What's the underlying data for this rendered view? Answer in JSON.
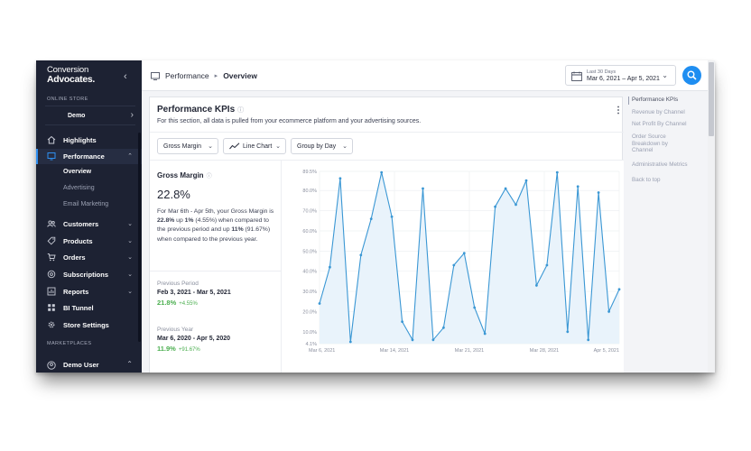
{
  "sidebar": {
    "logo_line1": "Conversion",
    "logo_line2": "Advocates.",
    "store_caption": "ONLINE STORE",
    "store_name": "Demo",
    "items": [
      {
        "label": "Highlights"
      },
      {
        "label": "Performance"
      },
      {
        "label": "Customers"
      },
      {
        "label": "Products"
      },
      {
        "label": "Orders"
      },
      {
        "label": "Subscriptions"
      },
      {
        "label": "Reports"
      },
      {
        "label": "BI Tunnel"
      },
      {
        "label": "Store Settings"
      }
    ],
    "performance_sub": [
      "Overview",
      "Advertising",
      "Email Marketing"
    ],
    "marketplaces_caption": "MARKETPLACES",
    "user_label": "Demo User"
  },
  "header": {
    "breadcrumb_section": "Performance",
    "breadcrumb_page": "Overview",
    "date_caption": "Last 30 Days",
    "date_range": "Mar 6, 2021 – Apr 5, 2021"
  },
  "panel": {
    "title": "Performance KPIs",
    "info_glyph": "ⓘ",
    "subtitle": "For this section, all data is pulled from your ecommerce platform and your advertising sources.",
    "metric_select": "Gross Margin",
    "chart_select": "Line Chart",
    "group_select": "Group by Day"
  },
  "summary": {
    "title": "Gross Margin",
    "value": "22.8%",
    "desc_parts": {
      "p1": "For Mar 6th - Apr 5th, your Gross Margin is ",
      "b1": "22.8%",
      "p2": " up ",
      "b2": "1%",
      "p3": " (4.55%) when compared to the previous period and up ",
      "b3": "11%",
      "p4": " (91.67%) when compared to the previous year."
    },
    "previous_period_caption": "Previous Period",
    "previous_period_range": "Feb 3, 2021 - Mar 5, 2021",
    "previous_period_value": "21.8%",
    "previous_period_delta": "+4.55%",
    "previous_year_caption": "Previous Year",
    "previous_year_range": "Mar 6, 2020 - Apr 5, 2020",
    "previous_year_value": "11.9%",
    "previous_year_delta": "+91.67%"
  },
  "toc": {
    "items": [
      "Performance KPIs",
      "Revenue by Channel",
      "Net Profit By Channel",
      "Order Source Breakdown by Channel",
      "Administrative Metrics",
      "Back to top"
    ]
  },
  "colors": {
    "sidebar_bg": "#1d2233",
    "accent": "#1f8ef1",
    "line": "#3a97d4",
    "positive": "#4caf50"
  },
  "chart_data": {
    "type": "line",
    "x_tick_labels": [
      "Mar 6, 2021",
      "Mar 14, 2021",
      "Mar 21, 2021",
      "Mar 28, 2021",
      "Apr 5, 2021"
    ],
    "y_tick_labels": [
      "4.1%",
      "10.0%",
      "20.0%",
      "30.0%",
      "40.0%",
      "50.0%",
      "60.0%",
      "70.0%",
      "80.0%",
      "89.5%"
    ],
    "y_ticks": [
      4.1,
      10,
      20,
      30,
      40,
      50,
      60,
      70,
      80,
      89.5
    ],
    "ylim": [
      4.1,
      89.5
    ],
    "grid": true,
    "series": [
      {
        "values": [
          24,
          42,
          86,
          5,
          48,
          66,
          89,
          67,
          15,
          6,
          81,
          6,
          12,
          43,
          49,
          22,
          9,
          72,
          81,
          73,
          85,
          33,
          43,
          89,
          10,
          82,
          6,
          79,
          20,
          31
        ]
      }
    ]
  }
}
